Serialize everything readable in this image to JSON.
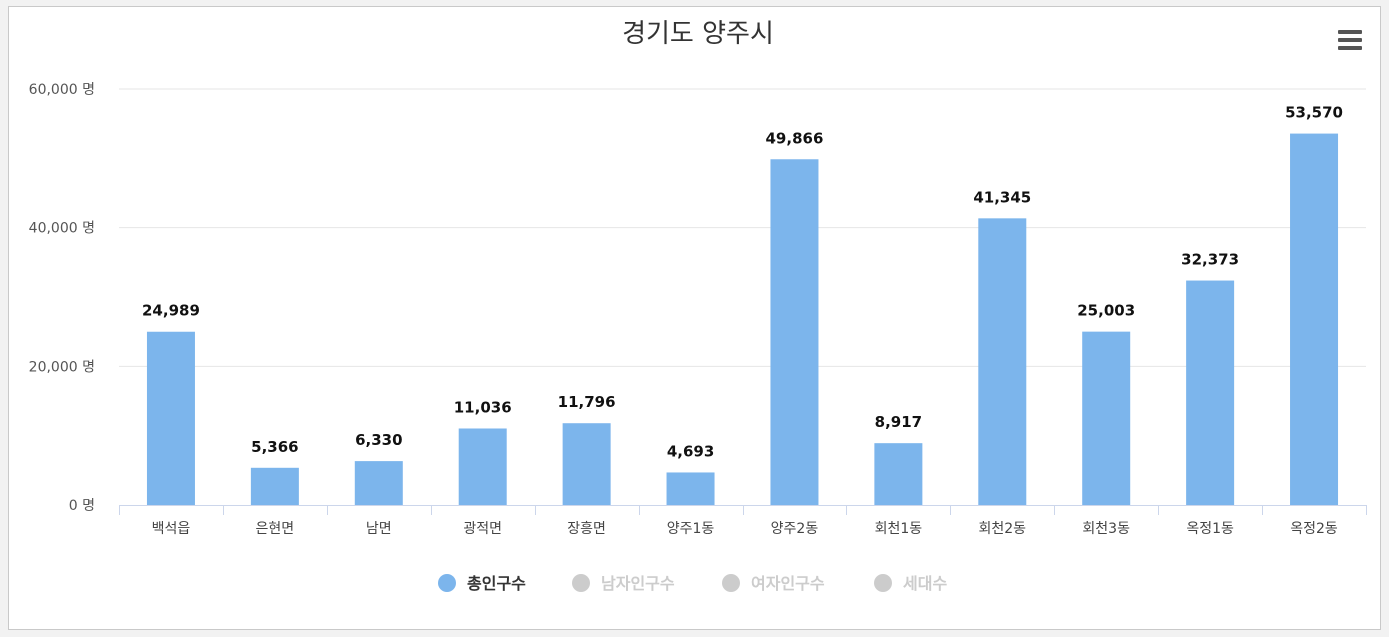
{
  "chart_data": {
    "type": "bar",
    "title": "경기도 양주시",
    "xlabel": "",
    "ylabel": "",
    "ylim": [
      0,
      60000
    ],
    "yticks": [
      {
        "value": 0,
        "label": "0 명"
      },
      {
        "value": 20000,
        "label": "20,000 명"
      },
      {
        "value": 40000,
        "label": "40,000 명"
      },
      {
        "value": 60000,
        "label": "60,000 명"
      }
    ],
    "categories": [
      "백석읍",
      "은현면",
      "남면",
      "광적면",
      "장흥면",
      "양주1동",
      "양주2동",
      "회천1동",
      "회천2동",
      "회천3동",
      "옥정1동",
      "옥정2동"
    ],
    "series": [
      {
        "name": "총인구수",
        "active": true,
        "color": "#7cb5ec",
        "values": [
          24989,
          5366,
          6330,
          11036,
          11796,
          4693,
          49866,
          8917,
          41345,
          25003,
          32373,
          53570
        ],
        "labels": [
          "24,989",
          "5,366",
          "6,330",
          "11,036",
          "11,796",
          "4,693",
          "49,866",
          "8,917",
          "41,345",
          "25,003",
          "32,373",
          "53,570"
        ]
      },
      {
        "name": "남자인구수",
        "active": false,
        "color": "#cccccc"
      },
      {
        "name": "여자인구수",
        "active": false,
        "color": "#cccccc"
      },
      {
        "name": "세대수",
        "active": false,
        "color": "#cccccc"
      }
    ],
    "grid": true,
    "legend_position": "bottom-center"
  },
  "toolbar": {
    "menu_icon": "hamburger-menu-icon"
  },
  "colors": {
    "legend_active_text": "#333333",
    "legend_inactive_text": "#cccccc",
    "grid": "#e6e6e6",
    "axis": "#ccd6eb"
  }
}
